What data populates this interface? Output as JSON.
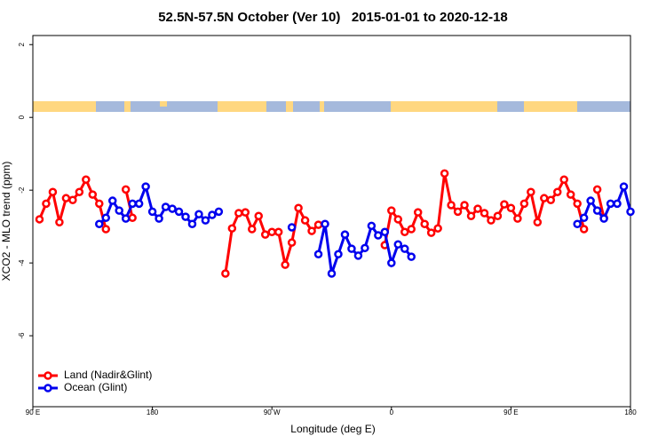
{
  "chart_data": {
    "type": "line",
    "title": "52.5N-57.5N October (Ver 10)   2015-01-01 to 2020-12-18",
    "x_label": "Longitude (deg E)",
    "y_label": "XCO2 - MLO trend (ppm)",
    "xlim": [
      90,
      540
    ],
    "ylim": [
      -7.95,
      2.25
    ],
    "xticks": [
      {
        "value": 90,
        "label": "90 E"
      },
      180,
      {
        "value": 270,
        "label": "90 W"
      },
      {
        "value": 360,
        "label": "0"
      },
      {
        "value": 450,
        "label": "90 E"
      },
      {
        "value": 540,
        "label": "180"
      }
    ],
    "yticks": [
      2,
      0,
      -2,
      -4,
      -6
    ],
    "grid": false,
    "legend": "bottom-left",
    "series": [
      {
        "name": "Land (Nadir&Glint)",
        "color": "#ff0000",
        "x": [
          95,
          100,
          105,
          110,
          115,
          120,
          125,
          130,
          135,
          140,
          145,
          150,
          160,
          165,
          170,
          235,
          240,
          245,
          250,
          255,
          260,
          265,
          270,
          275,
          280,
          285,
          290,
          295,
          300,
          305,
          310,
          355,
          360,
          365,
          370,
          375,
          380,
          385,
          390,
          395,
          400,
          405,
          410,
          415,
          420,
          425,
          430,
          435,
          440,
          445,
          450,
          455,
          460,
          465,
          470,
          475,
          480,
          485,
          490,
          495,
          500,
          505,
          510,
          515,
          520
        ],
        "values": [
          -2.8,
          -2.37,
          -2.05,
          -2.88,
          -2.22,
          -2.27,
          -2.05,
          -1.71,
          -2.12,
          -2.37,
          -3.07,
          null,
          -1.98,
          -2.76,
          null,
          -4.29,
          -3.05,
          -2.63,
          -2.61,
          -3.07,
          -2.71,
          -3.22,
          -3.15,
          -3.15,
          -4.05,
          -3.44,
          -2.49,
          -2.83,
          -3.12,
          -2.95,
          null,
          -3.51,
          -2.56,
          -2.8,
          -3.15,
          -3.07,
          -2.61,
          -2.93,
          -3.17,
          -3.05,
          -1.54,
          -2.41,
          -2.59,
          -2.41,
          -2.71,
          -2.51,
          -2.63,
          -2.83,
          -2.71,
          -2.39,
          -2.49,
          -2.78,
          -2.37,
          -2.05,
          -2.88,
          -2.22,
          -2.27,
          -2.05,
          -1.71,
          -2.12,
          -2.37,
          -3.07,
          null,
          -1.98,
          -2.76
        ]
      },
      {
        "name": "Ocean (Glint)",
        "color": "#0000ee",
        "x": [
          140,
          145,
          150,
          155,
          160,
          165,
          170,
          175,
          180,
          185,
          190,
          195,
          200,
          205,
          210,
          215,
          220,
          225,
          230,
          235,
          285,
          290,
          305,
          310,
          315,
          320,
          325,
          330,
          335,
          340,
          345,
          350,
          355,
          360,
          365,
          370,
          375,
          380,
          500,
          505,
          510,
          515,
          520,
          525,
          530,
          535,
          540
        ],
        "values": [
          -2.93,
          -2.76,
          -2.29,
          -2.56,
          -2.78,
          -2.37,
          -2.37,
          -1.9,
          -2.59,
          -2.78,
          -2.46,
          -2.51,
          -2.59,
          -2.73,
          -2.93,
          -2.66,
          -2.83,
          -2.68,
          -2.59,
          null,
          -3.02,
          null,
          -3.76,
          -2.93,
          -4.29,
          -3.76,
          -3.22,
          -3.61,
          -3.8,
          -3.59,
          -2.98,
          -3.24,
          -3.15,
          -4.0,
          -3.49,
          -3.61,
          -3.83,
          null,
          -2.93,
          -2.76,
          -2.29,
          -2.56,
          -2.78,
          -2.37,
          -2.37,
          -1.9,
          -2.59
        ]
      }
    ]
  }
}
